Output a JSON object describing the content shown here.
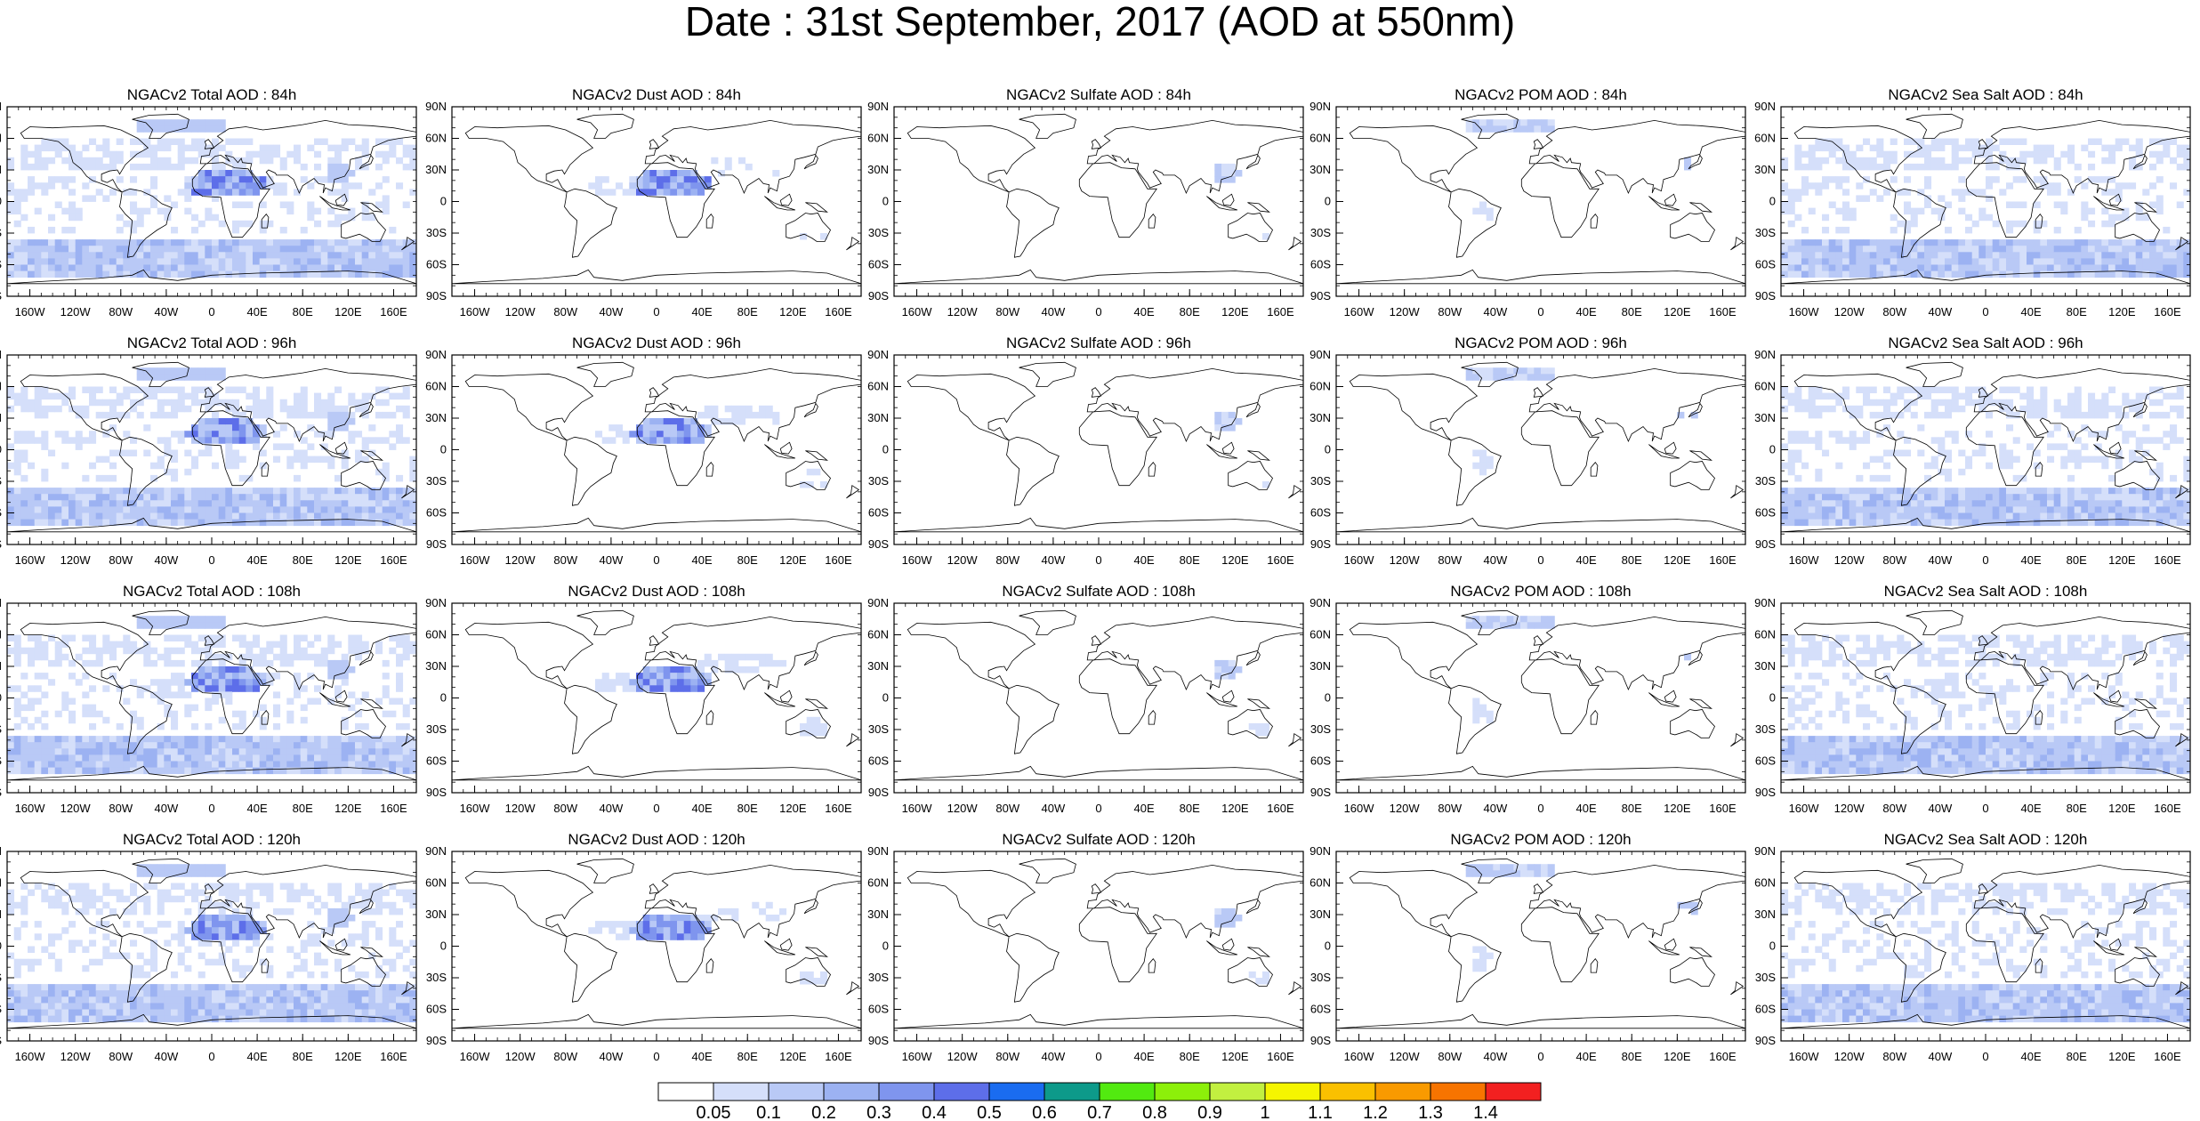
{
  "title": "Date : 31st September, 2017 (AOD at 550nm)",
  "panels": [
    [
      "NGACv2 Total AOD : 84h",
      "NGACv2 Dust AOD : 84h",
      "NGACv2 Sulfate AOD : 84h",
      "NGACv2 POM AOD : 84h",
      "NGACv2 Sea Salt AOD : 84h"
    ],
    [
      "NGACv2 Total AOD : 96h",
      "NGACv2 Dust AOD : 96h",
      "NGACv2 Sulfate AOD : 96h",
      "NGACv2 POM AOD : 96h",
      "NGACv2 Sea Salt AOD : 96h"
    ],
    [
      "NGACv2 Total AOD : 108h",
      "NGACv2 Dust AOD : 108h",
      "NGACv2 Sulfate AOD : 108h",
      "NGACv2 POM AOD : 108h",
      "NGACv2 Sea Salt AOD : 108h"
    ],
    [
      "NGACv2 Total AOD : 120h",
      "NGACv2 Dust AOD : 120h",
      "NGACv2 Sulfate AOD : 120h",
      "NGACv2 POM AOD : 120h",
      "NGACv2 Sea Salt  AOD : 120h"
    ]
  ],
  "lat_ticks": [
    "90N",
    "60N",
    "30N",
    "0",
    "30S",
    "60S",
    "90S"
  ],
  "lon_ticks": [
    "160W",
    "120W",
    "80W",
    "40W",
    "0",
    "40E",
    "80E",
    "120E",
    "160E"
  ],
  "colorbar": {
    "labels": [
      "0.05",
      "0.1",
      "0.2",
      "0.3",
      "0.4",
      "0.5",
      "0.6",
      "0.7",
      "0.8",
      "0.9",
      "1",
      "1.1",
      "1.2",
      "1.3",
      "1.4"
    ],
    "colors": [
      "#ffffff",
      "#d5dffa",
      "#b9c9f6",
      "#9cb2f2",
      "#7f95ee",
      "#5d6ee9",
      "#1a6cf0",
      "#0d9a8a",
      "#52ea10",
      "#8cf00a",
      "#c2f040",
      "#f5f500",
      "#fac000",
      "#f99a00",
      "#f77400",
      "#f22020"
    ]
  }
}
